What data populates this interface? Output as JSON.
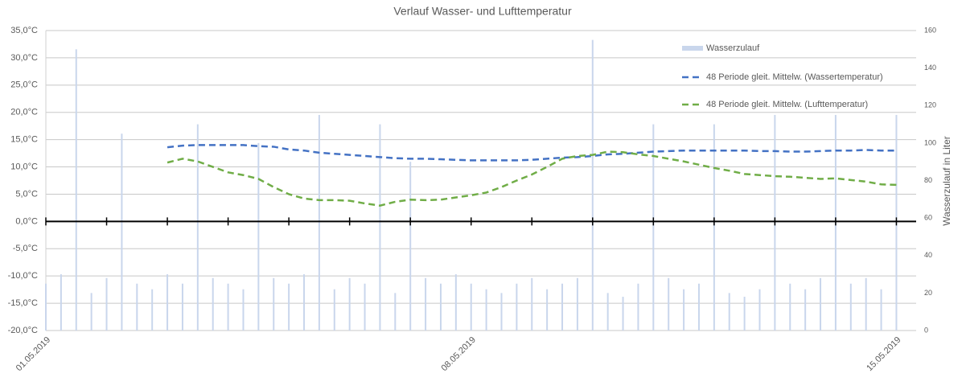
{
  "chart_data": {
    "type": "bar-line",
    "title": "Verlauf Wasser- und Lufttemperatur",
    "y2_label": "Wasserzulauf in Liter",
    "categories": [
      "01.05.2019",
      null,
      null,
      null,
      null,
      null,
      null,
      null,
      null,
      null,
      null,
      null,
      null,
      null,
      null,
      null,
      null,
      null,
      null,
      null,
      null,
      null,
      null,
      null,
      null,
      null,
      null,
      null,
      "08.05.2019",
      null,
      null,
      null,
      null,
      null,
      null,
      null,
      null,
      null,
      null,
      null,
      null,
      null,
      null,
      null,
      null,
      null,
      null,
      null,
      null,
      null,
      null,
      null,
      null,
      null,
      null,
      null,
      "15.05.2019"
    ],
    "ylim": [
      -20,
      35
    ],
    "yticks": [
      {
        "value": -20,
        "label": "-20,0°C"
      },
      {
        "value": -15,
        "label": "-15,0°C"
      },
      {
        "value": -10,
        "label": "-10,0°C"
      },
      {
        "value": -5,
        "label": "-5,0°C"
      },
      {
        "value": 0,
        "label": "0,0°C"
      },
      {
        "value": 5,
        "label": "5,0°C"
      },
      {
        "value": 10,
        "label": "10,0°C"
      },
      {
        "value": 15,
        "label": "15,0°C"
      },
      {
        "value": 20,
        "label": "20,0°C"
      },
      {
        "value": 25,
        "label": "25,0°C"
      },
      {
        "value": 30,
        "label": "30,0°C"
      },
      {
        "value": 35,
        "label": "35,0°C"
      }
    ],
    "y2lim": [
      0,
      160
    ],
    "y2ticks": [
      0,
      20,
      40,
      60,
      80,
      100,
      120,
      140,
      160
    ],
    "grid": true,
    "legend": "top-right",
    "series": [
      {
        "name": "Wasserzulauf",
        "type": "bar",
        "axis": "y2",
        "color": "#c9d6ec",
        "values": [
          25,
          30,
          150,
          20,
          28,
          105,
          25,
          22,
          30,
          25,
          110,
          28,
          25,
          22,
          100,
          28,
          25,
          30,
          115,
          22,
          28,
          25,
          110,
          20,
          90,
          28,
          25,
          30,
          25,
          22,
          20,
          25,
          28,
          22,
          25,
          28,
          155,
          20,
          18,
          25,
          110,
          28,
          22,
          25,
          110,
          20,
          18,
          22,
          115,
          25,
          22,
          28,
          115,
          25,
          28,
          22,
          115
        ]
      },
      {
        "name": "48 Periode gleit. Mittelw. (Wassertemperatur)",
        "type": "line",
        "color": "#4472c4",
        "values": [
          null,
          null,
          null,
          null,
          null,
          null,
          null,
          null,
          13.6,
          13.9,
          14,
          14,
          14,
          14,
          13.8,
          13.7,
          13.2,
          13,
          12.6,
          12.4,
          12.2,
          12,
          11.8,
          11.6,
          11.5,
          11.5,
          11.4,
          11.3,
          11.2,
          11.2,
          11.2,
          11.2,
          11.3,
          11.5,
          11.7,
          11.8,
          12,
          12.3,
          12.4,
          12.6,
          12.8,
          12.9,
          13,
          13,
          13,
          13,
          13,
          12.9,
          12.9,
          12.8,
          12.8,
          12.9,
          13,
          13,
          13.1,
          13,
          13
        ]
      },
      {
        "name": "48 Periode gleit. Mittelw. (Lufttemperatur)",
        "type": "line",
        "color": "#70ad47",
        "values": [
          null,
          null,
          null,
          null,
          null,
          null,
          null,
          null,
          10.8,
          11.5,
          11,
          10,
          9,
          8.5,
          7.8,
          6.3,
          5,
          4.2,
          3.9,
          3.9,
          3.8,
          3.3,
          2.9,
          3.6,
          4,
          3.9,
          4,
          4.4,
          4.8,
          5.3,
          6.3,
          7.5,
          8.6,
          10,
          11.5,
          12,
          12.2,
          12.8,
          12.7,
          12.3,
          12,
          11.5,
          11,
          10.4,
          9.8,
          9.3,
          8.7,
          8.5,
          8.3,
          8.2,
          8,
          7.8,
          7.9,
          7.6,
          7.3,
          6.8,
          6.7
        ]
      }
    ]
  }
}
